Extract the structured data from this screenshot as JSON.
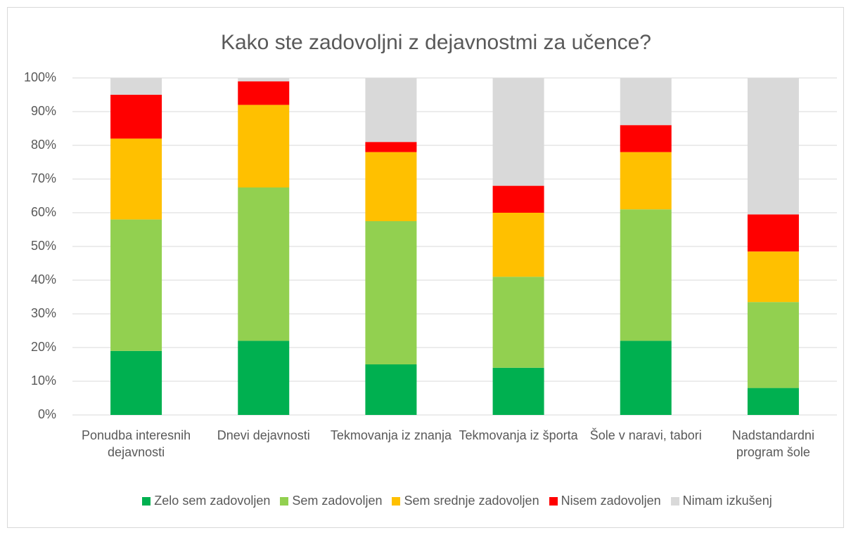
{
  "chart_data": {
    "type": "bar",
    "stacked": true,
    "title": "Kako ste zadovoljni z dejavnostmi za učence?",
    "categories": [
      "Ponudba interesnih dejavnosti",
      "Dnevi dejavnosti",
      "Tekmovanja iz znanja",
      "Tekmovanja iz športa",
      "Šole v naravi, tabori",
      "Nadstandardni program šole"
    ],
    "series": [
      {
        "name": "Zelo sem zadovoljen",
        "color": "#00b050",
        "values": [
          19,
          22,
          15,
          14,
          22,
          8
        ]
      },
      {
        "name": "Sem zadovoljen",
        "color": "#92d050",
        "values": [
          39,
          45.5,
          42.5,
          27,
          39,
          25.5
        ]
      },
      {
        "name": "Sem srednje zadovoljen",
        "color": "#ffc000",
        "values": [
          24,
          24.5,
          20.5,
          19,
          17,
          15
        ]
      },
      {
        "name": "Nisem zadovoljen",
        "color": "#ff0000",
        "values": [
          13,
          7,
          3,
          8,
          8,
          11
        ]
      },
      {
        "name": "Nimam izkušenj",
        "color": "#d9d9d9",
        "values": [
          5,
          1,
          19,
          32,
          14,
          40.5
        ]
      }
    ],
    "ylim": [
      0,
      100
    ],
    "yticks": [
      {
        "value": 0,
        "label": "0%"
      },
      {
        "value": 10,
        "label": "10%"
      },
      {
        "value": 20,
        "label": "20%"
      },
      {
        "value": 30,
        "label": "30%"
      },
      {
        "value": 40,
        "label": "40%"
      },
      {
        "value": 50,
        "label": "50%"
      },
      {
        "value": 60,
        "label": "60%"
      },
      {
        "value": 70,
        "label": "70%"
      },
      {
        "value": 80,
        "label": "80%"
      },
      {
        "value": 90,
        "label": "90%"
      },
      {
        "value": 100,
        "label": "100%"
      }
    ],
    "grid": true,
    "legend": "bottom"
  }
}
